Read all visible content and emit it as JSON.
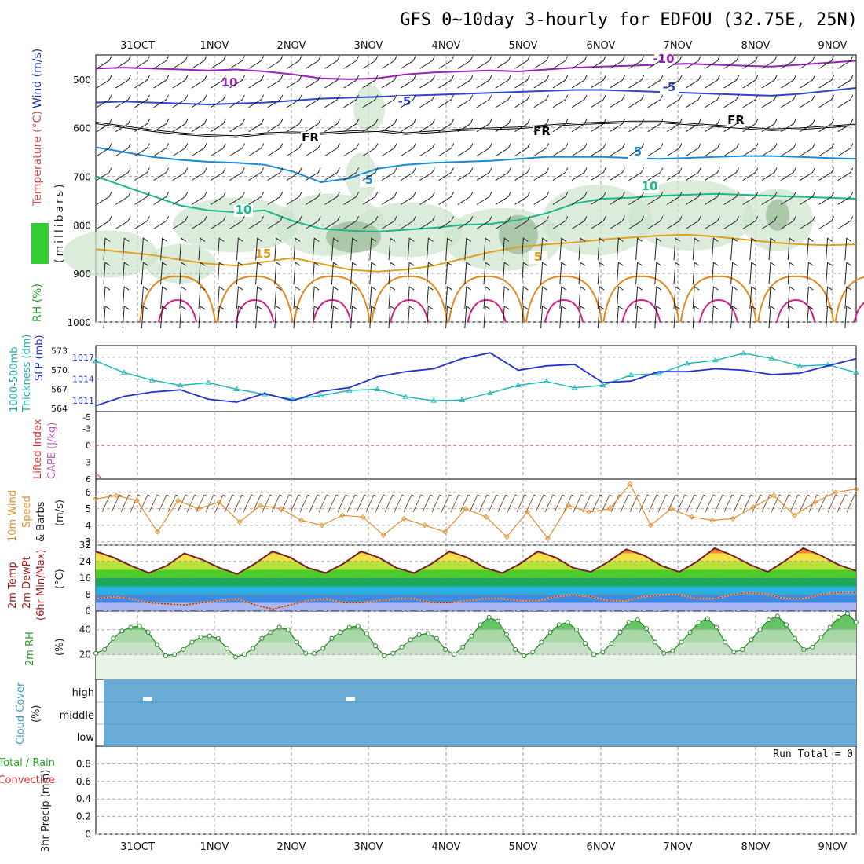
{
  "title": "GFS 0~10day 3-hourly for EDFOU (32.75E, 25N)",
  "days": [
    "31OCT",
    "1NOV",
    "2NOV",
    "3NOV",
    "4NOV",
    "5NOV",
    "6NOV",
    "7NOV",
    "8NOV",
    "9NOV"
  ],
  "chart_data": [
    {
      "type": "line",
      "panel": "upper-air",
      "ylabel_left": [
        "RH (%)",
        "Temperature (°C)",
        "Wind (m/s)"
      ],
      "ylabel": "(millibars)",
      "yticks": [
        500,
        600,
        700,
        800,
        900,
        1000
      ],
      "ylim": [
        450,
        1000
      ],
      "contour_labels": [
        {
          "text": "-10",
          "series": "-10"
        },
        {
          "text": "10",
          "series": "-10"
        },
        {
          "text": "-5",
          "series": "-5"
        },
        {
          "text": "-5",
          "series": "-5"
        },
        {
          "text": "FR",
          "series": "0"
        },
        {
          "text": "FR",
          "series": "0"
        },
        {
          "text": "FR",
          "series": "0"
        },
        {
          "text": "5",
          "series": "5"
        },
        {
          "text": "5",
          "series": "5"
        },
        {
          "text": "10",
          "series": "10"
        },
        {
          "text": "10",
          "series": "10"
        },
        {
          "text": "15",
          "series": "15"
        },
        {
          "text": "5",
          "series": "15"
        }
      ],
      "isotherms": [
        {
          "level": "-10",
          "color": "#9a22b8",
          "pressure": [
            478,
            476,
            478,
            480,
            482,
            480,
            484,
            490,
            498,
            500,
            498,
            490,
            486,
            484,
            482,
            484,
            480,
            476,
            474,
            472,
            470,
            468,
            470,
            472,
            474,
            470,
            466,
            462
          ]
        },
        {
          "level": "-5",
          "color": "#2a48c8",
          "pressure": [
            548,
            546,
            548,
            550,
            552,
            550,
            548,
            544,
            540,
            538,
            536,
            534,
            532,
            530,
            528,
            526,
            524,
            522,
            522,
            524,
            526,
            528,
            530,
            532,
            534,
            530,
            524,
            518
          ]
        },
        {
          "level": "0",
          "color": "#000000",
          "pressure": [
            590,
            598,
            606,
            612,
            616,
            618,
            612,
            610,
            612,
            608,
            606,
            612,
            608,
            604,
            602,
            600,
            596,
            592,
            590,
            588,
            588,
            592,
            596,
            600,
            604,
            602,
            598,
            594
          ]
        },
        {
          "level": "5",
          "color": "#1a8ad6",
          "pressure": [
            640,
            650,
            660,
            666,
            670,
            672,
            676,
            690,
            712,
            704,
            684,
            676,
            672,
            670,
            668,
            664,
            660,
            660,
            660,
            662,
            664,
            662,
            660,
            658,
            658,
            660,
            662,
            664
          ]
        },
        {
          "level": "10",
          "color": "#18b888",
          "pressure": [
            700,
            720,
            740,
            760,
            770,
            774,
            770,
            792,
            808,
            812,
            814,
            810,
            806,
            800,
            798,
            790,
            776,
            756,
            746,
            744,
            740,
            738,
            736,
            738,
            740,
            742,
            744,
            746
          ]
        },
        {
          "level": "15",
          "color": "#e0a020",
          "pressure": [
            850,
            856,
            862,
            872,
            880,
            884,
            876,
            868,
            880,
            892,
            896,
            892,
            884,
            870,
            856,
            846,
            840,
            836,
            830,
            826,
            822,
            820,
            824,
            830,
            836,
            840,
            842,
            840
          ]
        }
      ]
    },
    {
      "type": "line",
      "panel": "slp-thickness",
      "ylabel_left": [
        "1000-500mb",
        "Thickness (dm)"
      ],
      "ylabel_right": "SLP (mb)",
      "yticks_thickness": [
        564,
        567,
        570,
        573
      ],
      "yticks_slp": [
        1011,
        1014,
        1017
      ],
      "series": [
        {
          "name": "SLP",
          "color": "#2233cc",
          "values": [
            1010.3,
            1011.6,
            1012.2,
            1012.5,
            1011.2,
            1010.8,
            1012.0,
            1011.0,
            1012.3,
            1012.8,
            1014.3,
            1015.0,
            1015.4,
            1016.8,
            1017.6,
            1015.2,
            1015.8,
            1016.0,
            1013.5,
            1013.7,
            1015.0,
            1015.0,
            1015.4,
            1015.2,
            1014.6,
            1014.8,
            1015.8,
            1016.8
          ]
        },
        {
          "name": "Thickness",
          "color": "#22b8b8",
          "values": [
            571.4,
            569.6,
            568.4,
            567.6,
            568.0,
            567.0,
            566.2,
            565.4,
            566.0,
            566.8,
            567.0,
            565.8,
            565.2,
            565.3,
            566.4,
            567.6,
            568.2,
            567.2,
            567.6,
            569.2,
            569.4,
            571.0,
            571.5,
            572.6,
            571.8,
            570.6,
            570.8,
            569.6
          ]
        }
      ]
    },
    {
      "type": "line",
      "panel": "cape-li",
      "ylabel_left": [
        "Lifted Index",
        "CAPE (J/kg)"
      ],
      "yticks": [
        -5,
        -3,
        0,
        3,
        6
      ],
      "series": [
        {
          "name": "Lifted Index",
          "color": "#dd3333",
          "values": [
            5.8,
            6,
            6,
            6,
            6,
            6,
            6,
            6,
            6,
            6,
            6,
            6,
            6,
            6,
            6,
            6,
            6,
            6,
            6,
            6,
            6,
            6,
            6,
            6,
            6,
            6,
            6,
            6
          ]
        }
      ]
    },
    {
      "type": "line",
      "panel": "10m-wind",
      "ylabel_left": [
        "10m Wind",
        "Speed",
        "& Barbs"
      ],
      "ylabel": "(m/s)",
      "yticks": [
        3,
        4,
        5,
        6
      ],
      "ylim": [
        2.8,
        6.8
      ],
      "series": [
        {
          "name": "10m Wind Speed",
          "color": "#e09030",
          "values": [
            5.6,
            5.8,
            5.5,
            3.6,
            5.5,
            5.0,
            5.4,
            4.2,
            5.2,
            5.0,
            4.3,
            4.0,
            4.6,
            4.5,
            3.4,
            4.4,
            4.0,
            3.6,
            5.0,
            4.5,
            3.3,
            4.8,
            3.2,
            5.2,
            4.8,
            5.0,
            6.5,
            4.0,
            5.0,
            4.5,
            4.3,
            4.4,
            5.1,
            5.8,
            4.6,
            5.4,
            6.0,
            6.2
          ]
        }
      ]
    },
    {
      "type": "area",
      "panel": "2m-temp",
      "ylabel_left": [
        "2m Temp",
        "2m DewPt",
        "(6hr Min/Max)"
      ],
      "ylabel": "(°C)",
      "yticks": [
        0,
        8,
        16,
        24,
        32
      ],
      "ylim": [
        0,
        32
      ],
      "series": [
        {
          "name": "2m Temp",
          "color": "#7a2020",
          "values": [
            29,
            26,
            22,
            18.5,
            22,
            28,
            25,
            21,
            18,
            23,
            29,
            26,
            21,
            18.5,
            23,
            29,
            26,
            21,
            18.5,
            23,
            29,
            26,
            21,
            18.5,
            23,
            29,
            26,
            21,
            19,
            24,
            30,
            27,
            22,
            19,
            24,
            30.5,
            27,
            22.5,
            19,
            24.5,
            30.5,
            27,
            22.5,
            19.5
          ]
        },
        {
          "name": "2m DewPt",
          "color": "#7a2020",
          "values": [
            6,
            7,
            6,
            4,
            3.5,
            3,
            4,
            5,
            6,
            3,
            1,
            3,
            5,
            6,
            4,
            4,
            5,
            6,
            6,
            4,
            4,
            5,
            6,
            6,
            5,
            5,
            7,
            8,
            7,
            5,
            5,
            7,
            8,
            8,
            6,
            6,
            8,
            9,
            8,
            6,
            6,
            8,
            9,
            9
          ]
        }
      ]
    },
    {
      "type": "area",
      "panel": "2m-rh",
      "ylabel_left": [
        "2m RH"
      ],
      "ylabel": "(%)",
      "yticks": [
        20,
        40
      ],
      "ylim": [
        0,
        55
      ],
      "series": [
        {
          "name": "2m RH",
          "color": "#228822",
          "values": [
            21,
            24,
            33,
            39,
            42,
            43,
            38,
            28,
            19,
            20,
            24,
            30,
            34,
            35,
            33,
            25,
            18,
            20,
            25,
            33,
            38,
            42,
            40,
            30,
            21,
            21,
            25,
            33,
            38,
            42,
            43,
            37,
            27,
            19,
            21,
            26,
            32,
            36,
            37,
            33,
            24,
            20,
            26,
            35,
            44,
            50,
            47,
            36,
            24,
            19,
            22,
            30,
            38,
            44,
            46,
            40,
            29,
            20,
            22,
            29,
            38,
            46,
            48,
            41,
            30,
            21,
            23,
            30,
            38,
            46,
            49,
            42,
            30,
            22,
            24,
            32,
            40,
            48,
            51,
            44,
            33,
            24,
            26,
            34,
            42,
            50,
            53,
            46
          ]
        }
      ]
    },
    {
      "type": "heatmap",
      "panel": "cloud-cover",
      "ylabel_left": [
        "Cloud Cover",
        "(%)"
      ],
      "yticks": [
        "high",
        "middle",
        "low"
      ]
    },
    {
      "type": "bar",
      "panel": "precip",
      "ylabel_left": [
        "Total / Rain",
        "Convective",
        "3hr Precip (mm)"
      ],
      "yticks": [
        0,
        0.2,
        0.4,
        0.6,
        0.8
      ],
      "ylim": [
        0,
        1
      ],
      "annotation": "Run Total = 0",
      "series": []
    }
  ]
}
